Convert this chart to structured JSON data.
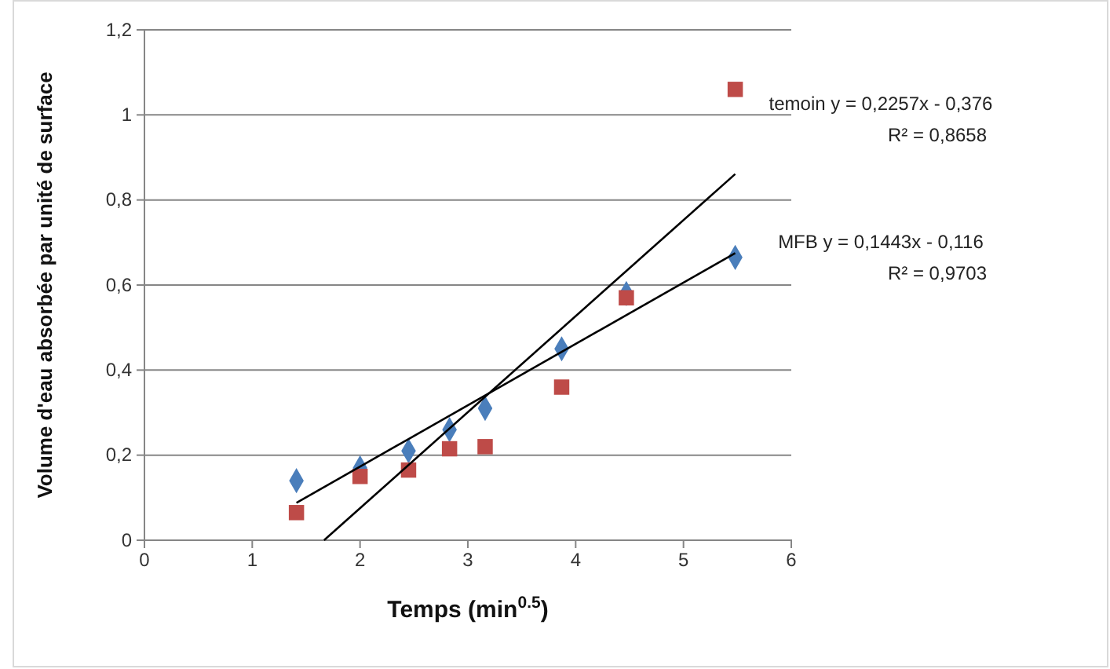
{
  "chart_data": {
    "type": "scatter",
    "xlabel": "Temps (min$^{0.5}$)",
    "ylabel": "Volume d'eau absorbée par unité de surface",
    "xlim": [
      0,
      6
    ],
    "xticks": [
      0,
      1,
      2,
      3,
      4,
      5,
      6
    ],
    "ylim": [
      0,
      1.2
    ],
    "yticks": [
      0,
      {
        "value": 0.2,
        "label": "0,2"
      },
      {
        "value": 0.4,
        "label": "0,4"
      },
      {
        "value": 0.6,
        "label": "0,6"
      },
      {
        "value": 0.8,
        "label": "0,8"
      },
      1,
      {
        "value": 1.2,
        "label": "1,2"
      }
    ],
    "grid": "y",
    "series": [
      {
        "marker": "diamond",
        "color": "#4a7ebb",
        "x": [
          1.41,
          2,
          2.45,
          2.83,
          3.16,
          3.87,
          4.47,
          5.48
        ],
        "values": [
          0.14,
          0.17,
          0.21,
          0.26,
          0.31,
          0.45,
          0.58,
          0.665
        ]
      },
      {
        "marker": "square",
        "color": "#be4b48",
        "x": [
          1.41,
          2,
          2.45,
          2.83,
          3.16,
          3.87,
          4.47,
          5.48
        ],
        "values": [
          0.065,
          0.15,
          0.165,
          0.215,
          0.22,
          0.36,
          0.57,
          1.06
        ]
      },
      {
        "type": "line",
        "marker": "none",
        "color": "#000000",
        "x": [
          1.666,
          5.48
        ],
        "values": [
          0,
          0.861
        ]
      },
      {
        "type": "line",
        "marker": "none",
        "color": "#000000",
        "x": [
          1.41,
          5.48
        ],
        "values": [
          0.088,
          0.675
        ]
      }
    ],
    "annotations": [
      "temoin y = 0,2257x - 0,376",
      "R² = 0,8658",
      "MFB y = 0,1443x - 0,116",
      "R² = 0,9703"
    ]
  }
}
